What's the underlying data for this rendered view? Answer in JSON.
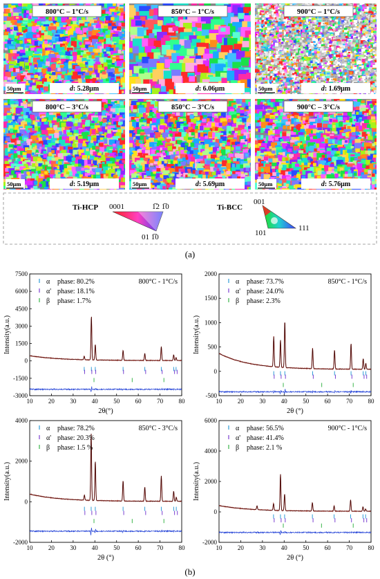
{
  "ebsd": {
    "maps": [
      {
        "condition": "800°C – 1°C/s",
        "scale": "50μm",
        "d_label": "d",
        "d_value": ": 5.28μm",
        "grain": "fine"
      },
      {
        "condition": "850°C – 1°C/s",
        "scale": "50μm",
        "d_label": "d",
        "d_value": ": 6.06μm",
        "grain": "coarse"
      },
      {
        "condition": "900°C – 1°C/s",
        "scale": "50μm",
        "d_label": "d",
        "d_value": ": 1.69μm",
        "grain": "ultrafine"
      },
      {
        "condition": "800°C – 3°C/s",
        "scale": "50μm",
        "d_label": "d",
        "d_value": ": 5.19μm",
        "grain": "fine"
      },
      {
        "condition": "850°C – 3°C/s",
        "scale": "50μm",
        "d_label": "d",
        "d_value": ": 5.69μm",
        "grain": "fine"
      },
      {
        "condition": "900°C – 3°C/s",
        "scale": "50μm",
        "d_label": "d",
        "d_value": ": 5.76μm",
        "grain": "fine"
      }
    ],
    "legend": {
      "hcp_label": "Ti-HCP",
      "hcp_0001": "0001",
      "hcp_1210": "1̅2 1̅0",
      "hcp_0110": "01 1̅0",
      "bcc_label": "Ti-BCC",
      "bcc_001": "001",
      "bcc_101": "101",
      "bcc_111": "111"
    },
    "caption": "(a)"
  },
  "caption_b": "(b)",
  "colors": {
    "tick_alpha": "#2e9bd6",
    "tick_alpha_prime": "#7a3fd0",
    "tick_beta": "#39b54a",
    "observed": "#c0392b",
    "calculated": "#3a0000",
    "difference": "#1f3fd6"
  },
  "chart_data": [
    {
      "type": "line",
      "condition": "800°C - 1°C/s",
      "xlabel": "2θ(°)",
      "ylabel": "Intensity(a.u.)",
      "xlim": [
        10,
        80
      ],
      "ylim": [
        -3000,
        7500
      ],
      "yticks": [
        -3000,
        -1500,
        0,
        1500,
        3000,
        4500,
        6000,
        7500
      ],
      "xticks": [
        10,
        20,
        30,
        40,
        50,
        60,
        70,
        80
      ],
      "legend": [
        {
          "symbol": "α",
          "label": "phase: 80.2%"
        },
        {
          "symbol": "α'",
          "label": "phase: 18.1%"
        },
        {
          "symbol": "β",
          "label": "phase: 1.7%"
        }
      ],
      "background": {
        "start": 450,
        "end": 30
      },
      "diff_offset": -2450,
      "peaks": [
        [
          35.1,
          300
        ],
        [
          38.4,
          3800
        ],
        [
          40.2,
          1350
        ],
        [
          53.0,
          850
        ],
        [
          63.0,
          600
        ],
        [
          70.6,
          1200
        ],
        [
          76.3,
          500
        ],
        [
          77.4,
          250
        ]
      ],
      "tick_rows": [
        -700,
        -950,
        -1650
      ],
      "tick_positions": {
        "alpha": [
          35.1,
          38.4,
          40.2,
          53.0,
          63.0,
          70.6,
          76.3,
          77.4
        ],
        "alpha_prime": [
          35.3,
          38.6,
          40.4,
          53.2,
          63.4,
          71.0,
          76.7,
          77.9
        ],
        "beta": [
          39.6,
          57.2,
          71.8
        ]
      }
    },
    {
      "type": "line",
      "condition": "850°C - 1°C/s",
      "xlabel": "2θ (°)",
      "ylabel": "Intensity(a.u.)",
      "xlim": [
        10,
        80
      ],
      "ylim": [
        -500,
        2000
      ],
      "yticks": [
        -500,
        0,
        500,
        1000,
        1500,
        2000
      ],
      "xticks": [
        10,
        20,
        30,
        40,
        50,
        60,
        70,
        80
      ],
      "legend": [
        {
          "symbol": "α",
          "label": "phase: 73.7%"
        },
        {
          "symbol": "α'",
          "label": "phase: 24.0%"
        },
        {
          "symbol": "β",
          "label": "phase: 2.3%"
        }
      ],
      "background": {
        "start": 370,
        "end": 40
      },
      "diff_offset": -420,
      "peaks": [
        [
          35.2,
          620
        ],
        [
          38.3,
          560
        ],
        [
          40.3,
          960
        ],
        [
          53.1,
          420
        ],
        [
          63.2,
          390
        ],
        [
          70.8,
          530
        ],
        [
          76.4,
          220
        ],
        [
          77.6,
          120
        ]
      ],
      "tick_rows": [
        -40,
        -110,
        -280
      ],
      "tick_positions": {
        "alpha": [
          35.2,
          38.3,
          40.3,
          53.1,
          63.2,
          70.8,
          76.4,
          77.6
        ],
        "alpha_prime": [
          35.4,
          38.6,
          40.6,
          53.4,
          63.6,
          71.2,
          76.8,
          78.0
        ],
        "beta": [
          39.6,
          57.3,
          71.8
        ]
      }
    },
    {
      "type": "line",
      "condition": "850°C - 3°C/s",
      "xlabel": "2θ (°)",
      "ylabel": "Intensity(a.u.)",
      "xlim": [
        10,
        80
      ],
      "ylim": [
        -2000,
        4000
      ],
      "yticks": [
        -2000,
        0,
        2000,
        4000
      ],
      "xticks": [
        10,
        20,
        30,
        40,
        50,
        60,
        70,
        80
      ],
      "legend": [
        {
          "symbol": "α",
          "label": "phase: 78.2%"
        },
        {
          "symbol": "α'",
          "label": "phase: 20.3%"
        },
        {
          "symbol": "β",
          "label": "phase: 1.5 %"
        }
      ],
      "background": {
        "start": 380,
        "end": 20
      },
      "diff_offset": -1450,
      "peaks": [
        [
          35.2,
          250
        ],
        [
          38.3,
          3300
        ],
        [
          40.2,
          1950
        ],
        [
          53.0,
          1000
        ],
        [
          63.0,
          700
        ],
        [
          70.6,
          1250
        ],
        [
          76.3,
          500
        ],
        [
          77.5,
          200
        ]
      ],
      "tick_rows": [
        -350,
        -550,
        -950
      ],
      "tick_positions": {
        "alpha": [
          35.2,
          38.3,
          40.2,
          53.0,
          63.0,
          70.6,
          76.3,
          77.5
        ],
        "alpha_prime": [
          35.4,
          38.6,
          40.5,
          53.3,
          63.4,
          71.0,
          76.7,
          78.0
        ],
        "beta": [
          39.6,
          57.2,
          71.8
        ]
      }
    },
    {
      "type": "line",
      "condition": "900°C - 1°C/s",
      "xlabel": "2θ (°)",
      "ylabel": "Intensity(a.u.)",
      "xlim": [
        10,
        80
      ],
      "ylim": [
        -2000,
        6000
      ],
      "yticks": [
        -2000,
        0,
        2000,
        4000,
        6000
      ],
      "xticks": [
        10,
        20,
        30,
        40,
        50,
        60,
        70,
        80
      ],
      "legend": [
        {
          "symbol": "α",
          "label": "phase: 56.5%"
        },
        {
          "symbol": "α'",
          "label": "phase: 41.4%"
        },
        {
          "symbol": "β",
          "label": "phase: 2.1 %"
        }
      ],
      "background": {
        "start": 420,
        "end": 40
      },
      "diff_offset": -1350,
      "peaks": [
        [
          27.5,
          250
        ],
        [
          35.1,
          450
        ],
        [
          38.3,
          2400
        ],
        [
          40.2,
          1100
        ],
        [
          53.0,
          550
        ],
        [
          63.0,
          350
        ],
        [
          70.6,
          750
        ],
        [
          76.3,
          300
        ],
        [
          77.5,
          150
        ]
      ],
      "tick_rows": [
        -300,
        -550,
        -900
      ],
      "tick_positions": {
        "alpha": [
          35.1,
          38.3,
          40.2,
          53.0,
          63.0,
          70.6,
          76.3,
          77.5
        ],
        "alpha_prime": [
          35.4,
          38.6,
          40.5,
          53.3,
          63.4,
          71.0,
          76.7,
          78.0
        ],
        "beta": [
          39.6,
          57.2,
          71.8
        ]
      }
    }
  ]
}
